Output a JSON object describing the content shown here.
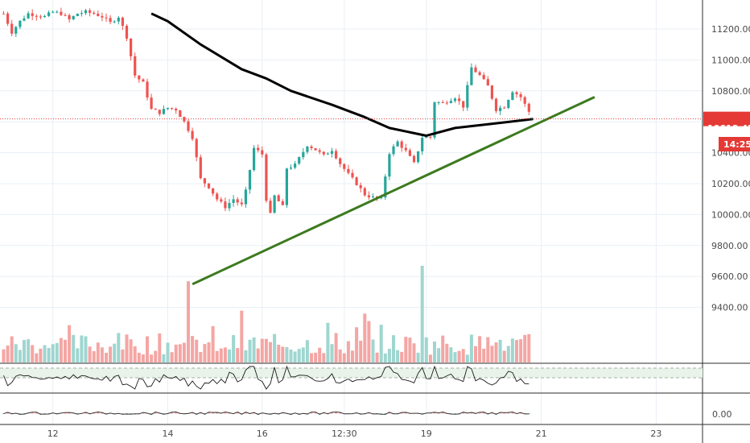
{
  "colors": {
    "up": "#26a69a",
    "down": "#ef5350",
    "vol_up": "#9fd6d0",
    "vol_down": "#f4a6a4",
    "moving_average": "#000000",
    "trendline": "#3c7a1e",
    "price_line": "#e53935",
    "price_badge": "#e53935",
    "grid": "#e9eff5",
    "axis_text": "#4a4a4a"
  },
  "price_label": "10618.45",
  "countdown_label": "14:25",
  "oscillator_label": "0.00",
  "chart_data": {
    "type": "candlestick",
    "y_axis": {
      "range": [
        9260,
        11270
      ],
      "ticks": [
        9400,
        9600,
        9800,
        10000,
        10200,
        10400,
        10600,
        10800,
        11000,
        11200
      ],
      "tick_labels": [
        "9400.00",
        "9600.00",
        "9800.00",
        "10000.00",
        "10200.00",
        "10400.00",
        "10600.00",
        "10800.00",
        "11000.00",
        "11200.00"
      ]
    },
    "x_axis": {
      "range": [
        0,
        64.5
      ],
      "ticks": [
        6,
        20,
        31.5,
        41.5,
        51.5,
        65.5,
        79.5
      ],
      "tick_labels": [
        "12",
        "14",
        "16",
        "12:30",
        "19",
        "21",
        "23"
      ]
    },
    "current_price": 10618.45,
    "price_anchors": [
      [
        0,
        11300
      ],
      [
        1,
        11180
      ],
      [
        2,
        11250
      ],
      [
        3,
        11300
      ],
      [
        5,
        11280
      ],
      [
        6,
        11310
      ],
      [
        7,
        11300
      ],
      [
        8,
        11260
      ],
      [
        9,
        11300
      ],
      [
        10,
        11310
      ],
      [
        11,
        11300
      ],
      [
        12,
        11280
      ],
      [
        13,
        11240
      ],
      [
        14,
        11280
      ],
      [
        15,
        11150
      ],
      [
        16,
        10900
      ],
      [
        17,
        10850
      ],
      [
        18,
        10680
      ],
      [
        19,
        10660
      ],
      [
        20,
        10690
      ],
      [
        21,
        10680
      ],
      [
        22,
        10600
      ],
      [
        23,
        10500
      ],
      [
        24,
        10230
      ],
      [
        25,
        10180
      ],
      [
        26,
        10100
      ],
      [
        27,
        10050
      ],
      [
        28,
        10100
      ],
      [
        29,
        10060
      ],
      [
        29.5,
        10150
      ],
      [
        30.5,
        10430
      ],
      [
        31.5,
        10390
      ],
      [
        32,
        10100
      ],
      [
        32.5,
        10000
      ],
      [
        33,
        10120
      ],
      [
        34,
        10050
      ],
      [
        34.5,
        10300
      ],
      [
        35.5,
        10320
      ],
      [
        37,
        10450
      ],
      [
        38,
        10420
      ],
      [
        39,
        10380
      ],
      [
        40,
        10420
      ],
      [
        41,
        10330
      ],
      [
        42,
        10260
      ],
      [
        43,
        10200
      ],
      [
        44,
        10130
      ],
      [
        45,
        10110
      ],
      [
        46,
        10100
      ],
      [
        47,
        10400
      ],
      [
        48,
        10470
      ],
      [
        49,
        10410
      ],
      [
        50,
        10330
      ],
      [
        51,
        10500
      ],
      [
        52,
        10500
      ],
      [
        52.5,
        10730
      ],
      [
        53.5,
        10720
      ],
      [
        55,
        10760
      ],
      [
        56,
        10700
      ],
      [
        57,
        10950
      ],
      [
        58,
        10900
      ],
      [
        59,
        10830
      ],
      [
        60,
        10680
      ],
      [
        61,
        10700
      ],
      [
        62,
        10800
      ],
      [
        63,
        10760
      ],
      [
        64.5,
        10618
      ]
    ],
    "moving_average": {
      "points": [
        [
          18,
          11300
        ],
        [
          20,
          11250
        ],
        [
          24,
          11100
        ],
        [
          29,
          10940
        ],
        [
          32,
          10880
        ],
        [
          35,
          10800
        ],
        [
          40,
          10710
        ],
        [
          44,
          10630
        ],
        [
          47,
          10560
        ],
        [
          51.5,
          10510
        ],
        [
          55,
          10560
        ],
        [
          60,
          10590
        ],
        [
          64.5,
          10618
        ]
      ]
    },
    "trendline": {
      "points": [
        [
          23,
          9550
        ],
        [
          72,
          10760
        ]
      ]
    },
    "volume": {
      "max": 500
    },
    "rsi_panel": {
      "levels": [
        30,
        70
      ]
    },
    "oscillator_panel": {
      "zero_label": "0.00"
    }
  }
}
